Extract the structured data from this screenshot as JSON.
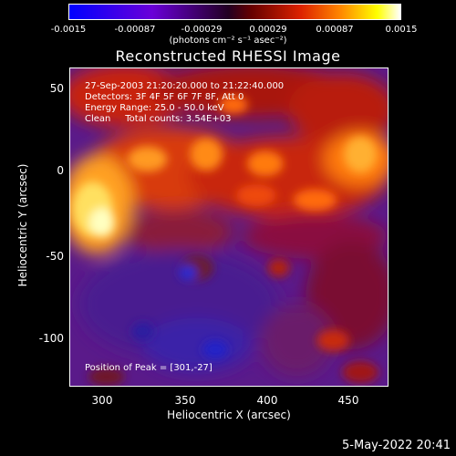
{
  "colorbar": {
    "ticks": [
      "-0.0015",
      "-0.00087",
      "-0.00029",
      "0.00029",
      "0.00087",
      "0.0015"
    ],
    "units": "(photons cm⁻² s⁻¹ asec⁻²)"
  },
  "title": "Reconstructed RHESSI Image",
  "info": {
    "time": "27-Sep-2003 21:20:20.000 to 21:22:40.000",
    "detectors": "Detectors: 3F 4F 5F 6F 7F 8F, Att 0",
    "energy": "Energy Range: 25.0 - 50.0 keV",
    "clean": "Clean     Total counts: 3.54E+03",
    "peak": "Position of Peak = [301,-27]"
  },
  "axes": {
    "xlabel": "Heliocentric X (arcsec)",
    "ylabel": "Heliocentric Y (arcsec)",
    "xticks": [
      "300",
      "350",
      "400",
      "450"
    ],
    "yticks": [
      "50",
      "0",
      "-50",
      "-100"
    ]
  },
  "datestamp": "5-May-2022 20:41",
  "colors": {
    "background": "#000000",
    "foreground": "#ffffff"
  }
}
